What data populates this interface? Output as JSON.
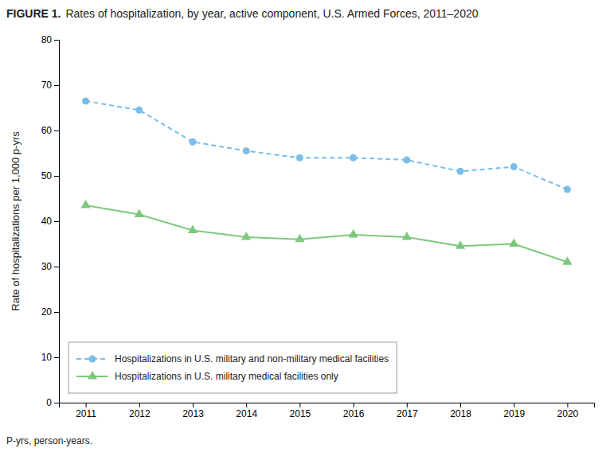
{
  "chart_data": {
    "type": "line",
    "title": "FIGURE 1.",
    "subtitle": "Rates of hospitalization, by year, active component, U.S. Armed Forces, 2011–2020",
    "y_label": "Rate of hospitalizations per 1,000 p-yrs",
    "annotations": [
      "P-yrs, person-years."
    ],
    "x": [
      2011,
      2012,
      2013,
      2014,
      2015,
      2016,
      2017,
      2018,
      2019,
      2020
    ],
    "xlim": [
      2010.5,
      2020.5
    ],
    "xticks": [
      2011,
      2012,
      2013,
      2014,
      2015,
      2016,
      2017,
      2018,
      2019,
      2020
    ],
    "ylim": [
      0,
      80
    ],
    "yticks": [
      0,
      10,
      20,
      30,
      40,
      50,
      60,
      70,
      80
    ],
    "grid": false,
    "legend": "lower left",
    "series": [
      {
        "name": "Hospitalizations in U.S. military and non-military medical facilities",
        "color": "#7abde8",
        "marker": "circle",
        "line_style": "dashed",
        "values": [
          66.5,
          64.5,
          57.5,
          55.5,
          54.0,
          54.0,
          53.5,
          51.0,
          52.0,
          47.0
        ]
      },
      {
        "name": "Hospitalizations in U.S. military medical facilities only",
        "color": "#7dc87d",
        "marker": "triangle",
        "line_style": "solid",
        "values": [
          43.5,
          41.5,
          38.0,
          36.5,
          36.0,
          37.0,
          36.5,
          34.5,
          35.0,
          31.0
        ]
      }
    ]
  }
}
